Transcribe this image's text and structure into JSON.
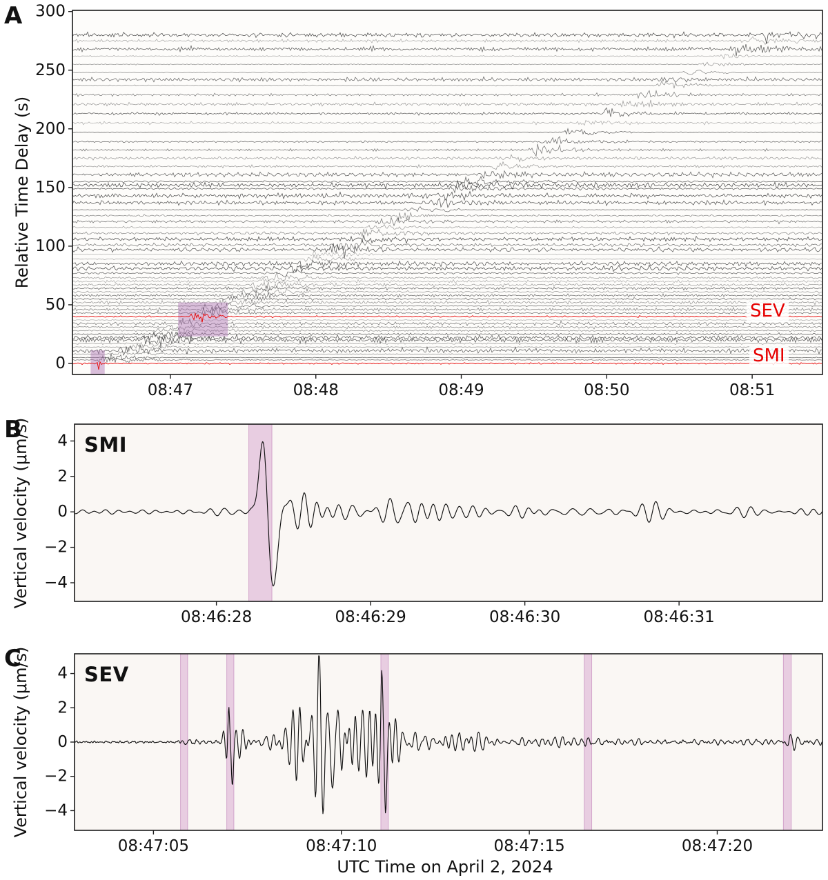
{
  "figure": {
    "background": "#ffffff",
    "xlabel": "UTC Time on April 2, 2024",
    "colors": {
      "trace_gray": "#333333",
      "trace_red": "#e60000",
      "waveform_black": "#111111",
      "highlight_fill": "rgba(206,142,198,0.40)",
      "highlight_edge": "rgba(186,116,178,0.55)",
      "highlight_fill_strong": "rgba(168,104,175,0.42)",
      "panel_bg_a": "#fdfcfa",
      "panel_bg_bc": "#faf7f4",
      "frame": "#1a1a1a"
    }
  },
  "chart_data": [
    {
      "type": "line",
      "panel_letter": "A",
      "description": "record section of aligned seismograms",
      "ylabel": "Relative Time Delay (s)",
      "ytick_labels": [
        "0",
        "50",
        "100",
        "150",
        "200",
        "250",
        "300"
      ],
      "ytick_values": [
        0,
        50,
        100,
        150,
        200,
        250,
        300
      ],
      "ylim": [
        -9.4,
        301
      ],
      "xtick_labels": [
        "08:47",
        "08:48",
        "08:49",
        "08:50",
        "08:51"
      ],
      "xtick_seconds": [
        60,
        120,
        180,
        240,
        300
      ],
      "xlim_seconds": [
        19.6,
        329.0
      ],
      "moveout": {
        "origin_offset_s": 30.5,
        "slope": 0.98
      },
      "station_delays_s": [
        3,
        5,
        8,
        11,
        14,
        17,
        20,
        22,
        25,
        28,
        31,
        34,
        37,
        43,
        46,
        49,
        52,
        55,
        58,
        61,
        64,
        67,
        70,
        73,
        77,
        81,
        85,
        89,
        93,
        97,
        101,
        106,
        111,
        116,
        121,
        126,
        131,
        137,
        143,
        149,
        152,
        155,
        161,
        168,
        175,
        182,
        189,
        197,
        205,
        213,
        221,
        229,
        237,
        242,
        248,
        255,
        262,
        268,
        275,
        280
      ],
      "red_traces": [
        {
          "label": "SMI",
          "delay_s": 0,
          "pulse_time_s": 28.3
        },
        {
          "label": "SEV",
          "delay_s": 40,
          "pulse_time_s": 69.6
        }
      ],
      "highlight_band": {
        "t1_s": 27.1,
        "t2_s": 32.9,
        "delay_min": -9.4,
        "delay_max": 11.2
      },
      "highlight_box": {
        "t1_s": 63.2,
        "t2_s": 83.7,
        "delay_min": 23,
        "delay_max": 52
      }
    },
    {
      "type": "line",
      "panel_letter": "B",
      "station": "SMI",
      "ylabel": "Vertical velocity (μm/s)",
      "ytick_labels": [
        "4",
        "2",
        "0",
        "−2",
        "−4"
      ],
      "ytick_values": [
        4,
        2,
        0,
        -2,
        -4
      ],
      "ylim": [
        -5.05,
        4.95
      ],
      "xtick_labels": [
        "08:46:28",
        "08:46:29",
        "08:46:30",
        "08:46:31"
      ],
      "xtick_seconds": [
        28,
        29,
        30,
        31
      ],
      "xlim_seconds": [
        27.08,
        31.93
      ],
      "bands_s": [
        [
          28.21,
          28.36
        ]
      ],
      "main_pulse": {
        "time_s": 28.31,
        "peak_umps": 4.1,
        "trough_umps": -3.9
      },
      "envelope": [
        [
          27.08,
          0.14
        ],
        [
          27.6,
          0.17
        ],
        [
          28.0,
          0.2
        ],
        [
          28.18,
          0.28
        ],
        [
          28.28,
          0.35
        ],
        [
          28.42,
          1.45
        ],
        [
          28.6,
          1.3
        ],
        [
          28.8,
          0.9
        ],
        [
          29.0,
          0.6
        ],
        [
          29.18,
          0.95
        ],
        [
          29.42,
          0.8
        ],
        [
          29.6,
          0.55
        ],
        [
          29.9,
          0.5
        ],
        [
          30.2,
          0.45
        ],
        [
          30.55,
          0.38
        ],
        [
          30.9,
          0.42
        ],
        [
          31.3,
          0.35
        ],
        [
          31.6,
          0.3
        ],
        [
          31.93,
          0.42
        ]
      ],
      "freq_hz": [
        7,
        16
      ]
    },
    {
      "type": "line",
      "panel_letter": "C",
      "station": "SEV",
      "ylabel": "Vertical velocity (μm/s)",
      "ytick_labels": [
        "4",
        "2",
        "0",
        "−2",
        "−4"
      ],
      "ytick_values": [
        4,
        2,
        0,
        -2,
        -4
      ],
      "ylim": [
        -5.15,
        5.15
      ],
      "xtick_labels": [
        "08:47:05",
        "08:47:10",
        "08:47:15",
        "08:47:20"
      ],
      "xtick_seconds": [
        65,
        70,
        75,
        80
      ],
      "xlim_seconds": [
        62.9,
        82.8
      ],
      "bands_s": [
        [
          65.72,
          65.91
        ],
        [
          66.95,
          67.14
        ],
        [
          71.05,
          71.25
        ],
        [
          76.46,
          76.66
        ],
        [
          81.76,
          81.97
        ]
      ],
      "envelope": [
        [
          62.9,
          0.05
        ],
        [
          65.55,
          0.05
        ],
        [
          65.8,
          0.35
        ],
        [
          66.05,
          0.15
        ],
        [
          66.8,
          0.07
        ],
        [
          66.98,
          1.9
        ],
        [
          67.12,
          2.4
        ],
        [
          67.4,
          1.2
        ],
        [
          67.8,
          0.55
        ],
        [
          68.3,
          0.55
        ],
        [
          68.7,
          1.5
        ],
        [
          69.1,
          2.8
        ],
        [
          69.45,
          3.3
        ],
        [
          69.65,
          4.8
        ],
        [
          69.95,
          3.4
        ],
        [
          70.3,
          2.9
        ],
        [
          70.7,
          2.3
        ],
        [
          71.05,
          3.3
        ],
        [
          71.25,
          2.0
        ],
        [
          71.6,
          1.2
        ],
        [
          72.1,
          0.75
        ],
        [
          72.8,
          0.55
        ],
        [
          73.7,
          0.45
        ],
        [
          74.7,
          0.32
        ],
        [
          75.7,
          0.25
        ],
        [
          76.55,
          0.6
        ],
        [
          76.9,
          0.25
        ],
        [
          77.8,
          0.18
        ],
        [
          79.0,
          0.15
        ],
        [
          80.5,
          0.17
        ],
        [
          81.9,
          0.5
        ],
        [
          82.3,
          0.2
        ],
        [
          82.8,
          0.15
        ]
      ],
      "freq_hz": [
        3.2,
        7.5
      ],
      "xlabel": "UTC Time on April 2, 2024"
    }
  ]
}
